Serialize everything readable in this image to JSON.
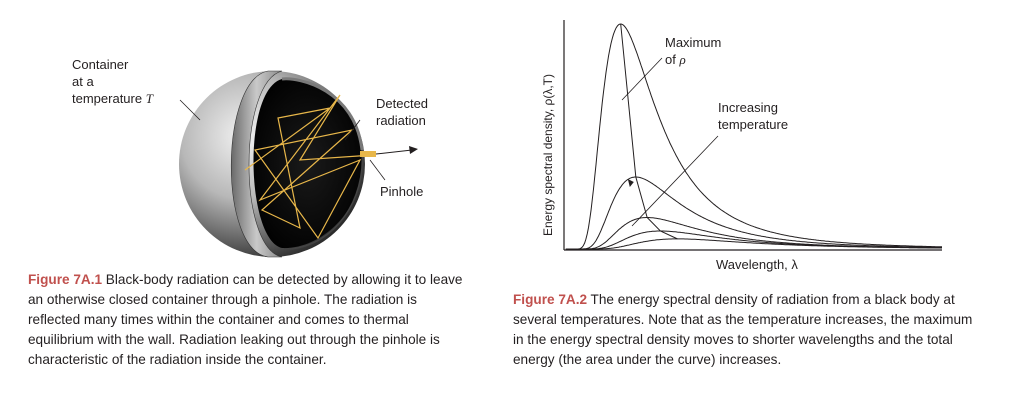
{
  "figure1": {
    "label_container_1": "Container",
    "label_container_2": "at a",
    "label_container_3": "temperature ",
    "label_container_T": "T",
    "label_detected_1": "Detected",
    "label_detected_2": "radiation",
    "label_pinhole": "Pinhole",
    "caption_id": "Figure 7A.1",
    "caption_text": " Black-body radiation can be detected by allowing it to leave an otherwise closed container through a pinhole. The radiation is reflected many times within the container and comes to thermal equilibrium with the wall. Radiation leaking out through the pinhole is characteristic of the radiation inside the container."
  },
  "figure2": {
    "label_max_1": "Maximum",
    "label_max_2": "of ",
    "label_max_rho": "ρ",
    "label_temp_1": "Increasing",
    "label_temp_2": "temperature",
    "caption_id": "Figure 7A.2",
    "caption_text": " The energy spectral density of radiation from a black body at several temperatures. Note that as the temperature increases, the maximum in the energy spectral density moves to shorter wavelengths and the total energy (the area under the curve) increases."
  },
  "chart_data": {
    "type": "line",
    "xlabel": "Wavelength, λ",
    "ylabel": "Energy spectral density, ρ(λ,T)",
    "series": [
      {
        "peak_x": 0.15,
        "peak_y": 1.0
      },
      {
        "peak_x": 0.19,
        "peak_y": 0.32
      },
      {
        "peak_x": 0.22,
        "peak_y": 0.14
      },
      {
        "peak_x": 0.255,
        "peak_y": 0.08
      },
      {
        "peak_x": 0.3,
        "peak_y": 0.045
      }
    ],
    "annotations": [
      "Maximum of ρ",
      "Increasing temperature"
    ]
  }
}
